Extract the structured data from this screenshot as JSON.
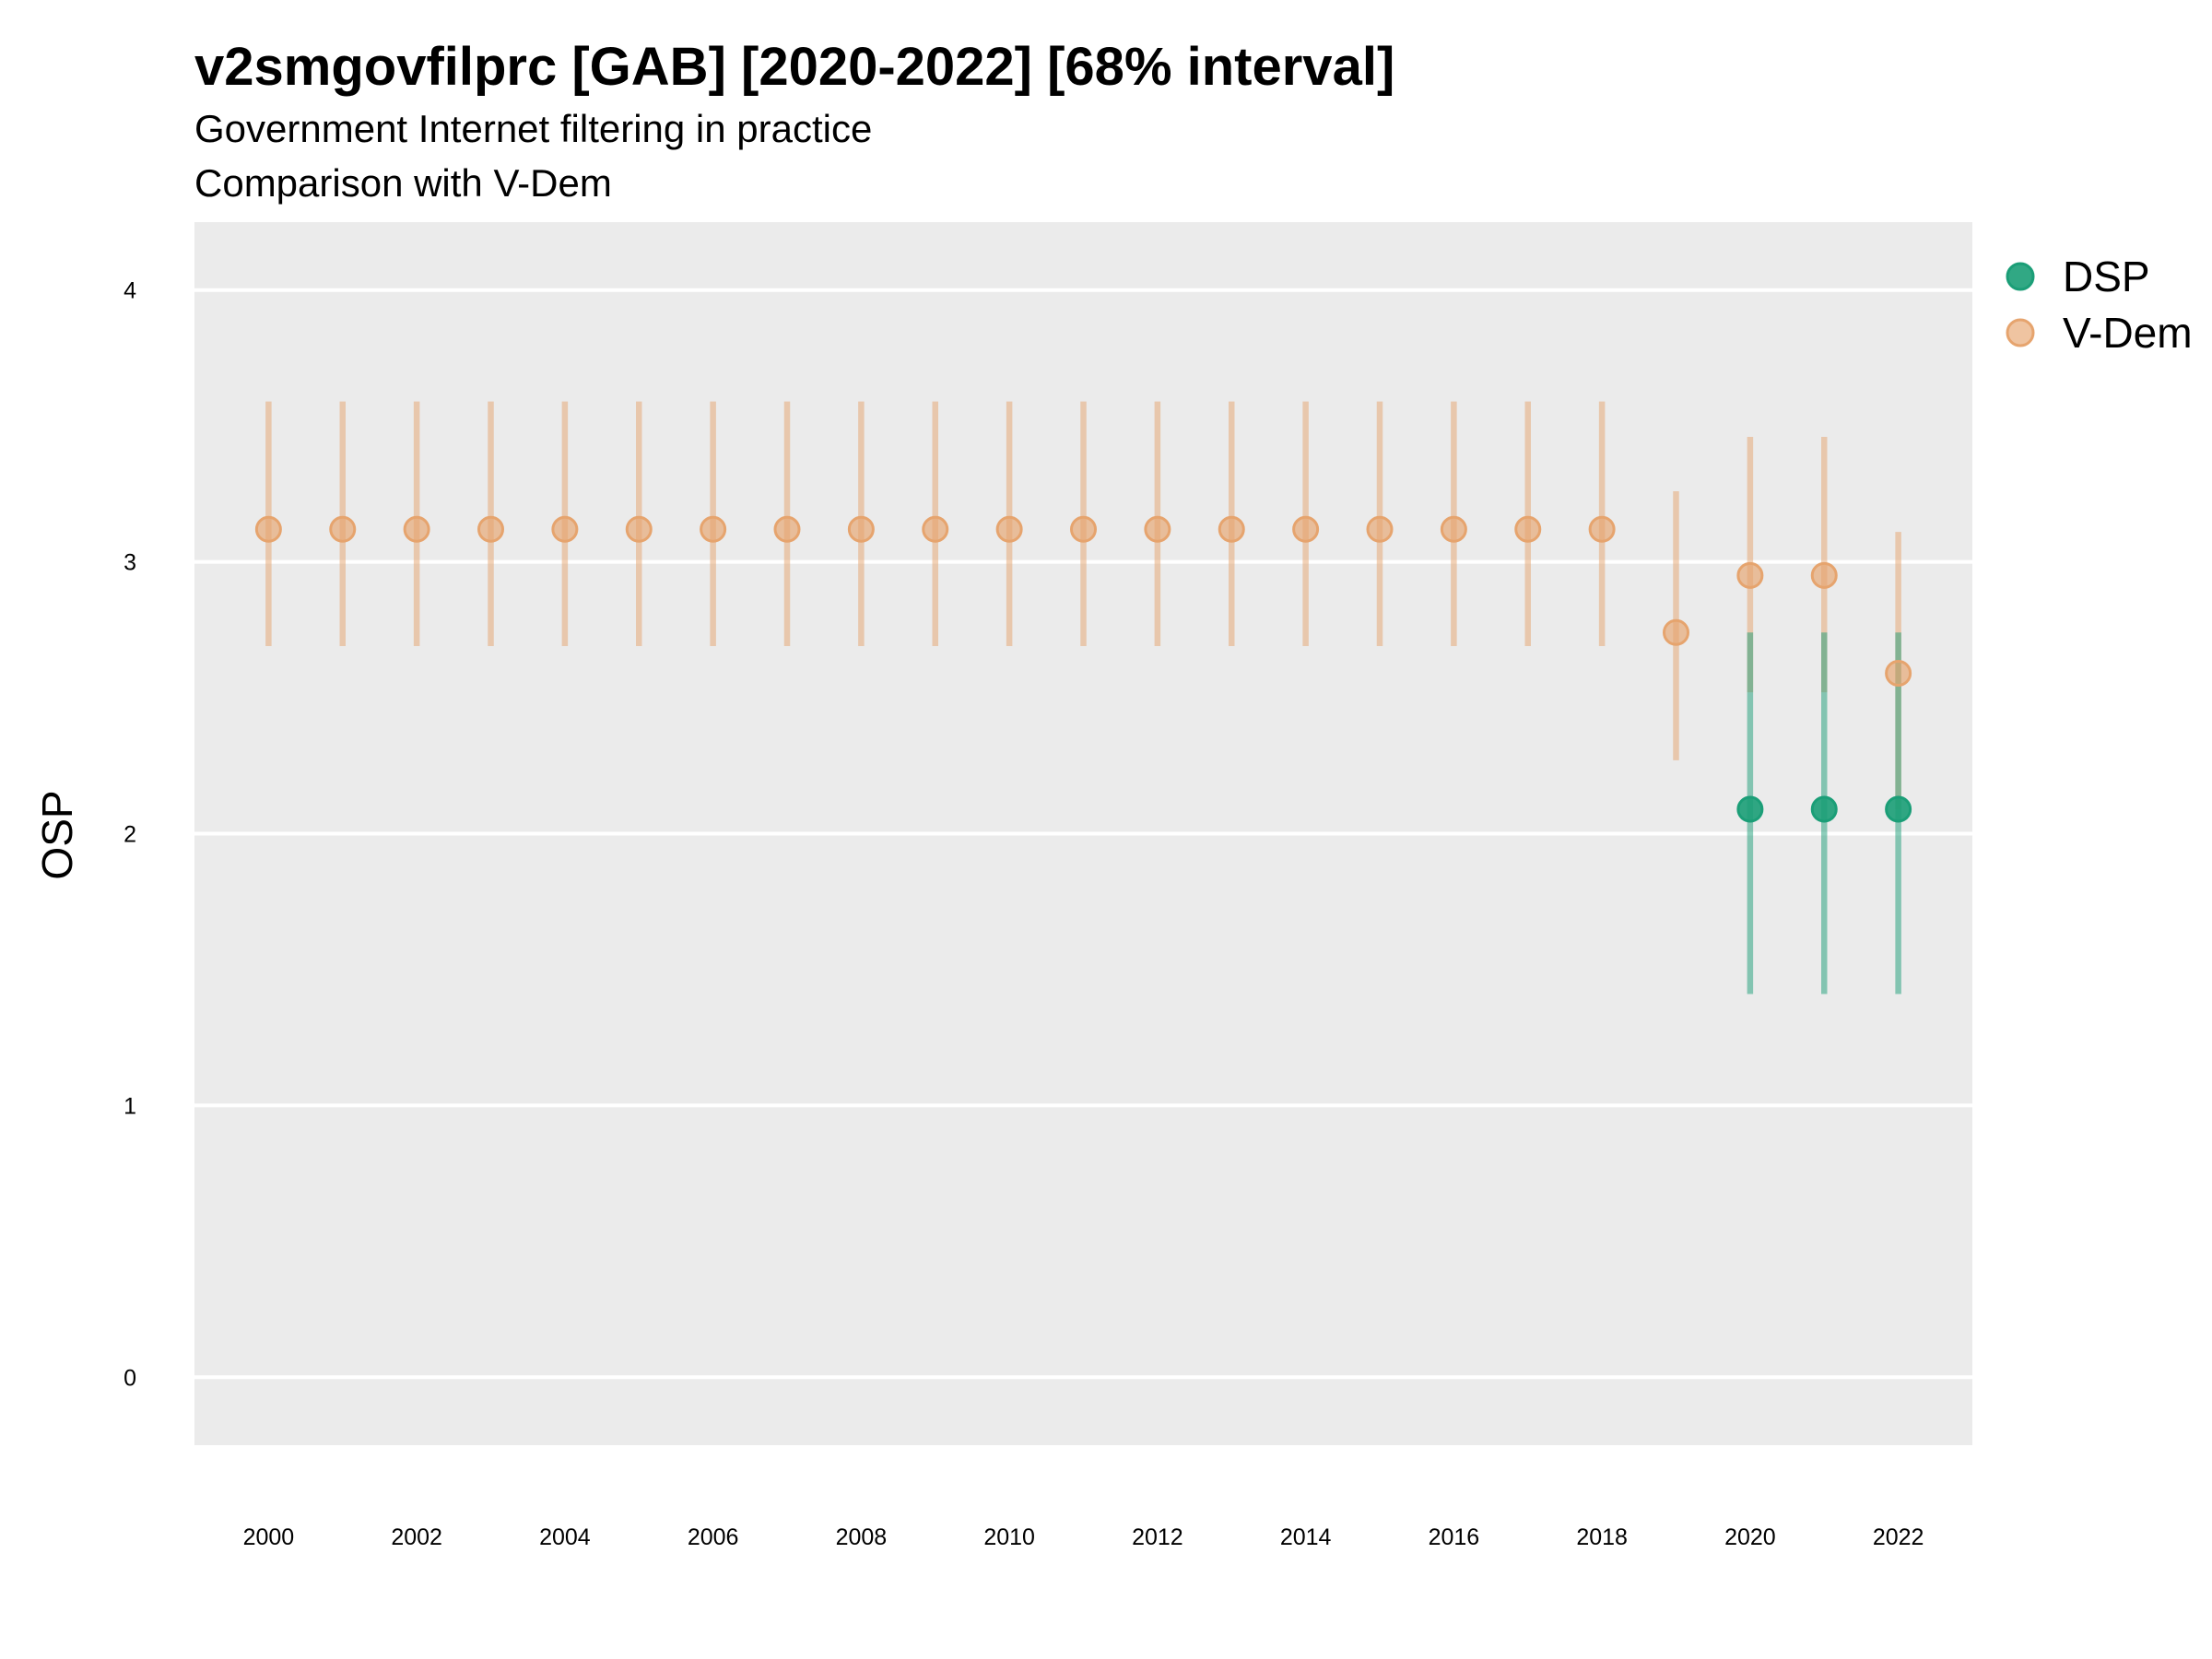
{
  "chart_data": {
    "type": "scatter",
    "title": "v2smgovfilprc [GAB] [2020-2022] [68% interval]",
    "subtitle": "Government Internet filtering in practice",
    "subtitle2": "Comparison with V-Dem",
    "xlabel": "",
    "ylabel": "OSP",
    "xlim": [
      1999,
      2023
    ],
    "ylim": [
      -0.25,
      4.25
    ],
    "x_ticks": [
      "2000",
      "2002",
      "2004",
      "2006",
      "2008",
      "2010",
      "2012",
      "2014",
      "2016",
      "2018",
      "2020",
      "2022"
    ],
    "y_ticks": [
      "0",
      "1",
      "2",
      "3",
      "4"
    ],
    "grid": true,
    "legend_position": "right",
    "series": [
      {
        "name": "DSP",
        "color": "#1b9e77",
        "points": [
          {
            "x": 2020,
            "y": 2.09,
            "low": 1.41,
            "high": 2.74
          },
          {
            "x": 2021,
            "y": 2.09,
            "low": 1.41,
            "high": 2.74
          },
          {
            "x": 2022,
            "y": 2.09,
            "low": 1.41,
            "high": 2.74
          }
        ]
      },
      {
        "name": "V-Dem",
        "color": "#e6a46e",
        "points": [
          {
            "x": 2000,
            "y": 3.12,
            "low": 2.69,
            "high": 3.59
          },
          {
            "x": 2001,
            "y": 3.12,
            "low": 2.69,
            "high": 3.59
          },
          {
            "x": 2002,
            "y": 3.12,
            "low": 2.69,
            "high": 3.59
          },
          {
            "x": 2003,
            "y": 3.12,
            "low": 2.69,
            "high": 3.59
          },
          {
            "x": 2004,
            "y": 3.12,
            "low": 2.69,
            "high": 3.59
          },
          {
            "x": 2005,
            "y": 3.12,
            "low": 2.69,
            "high": 3.59
          },
          {
            "x": 2006,
            "y": 3.12,
            "low": 2.69,
            "high": 3.59
          },
          {
            "x": 2007,
            "y": 3.12,
            "low": 2.69,
            "high": 3.59
          },
          {
            "x": 2008,
            "y": 3.12,
            "low": 2.69,
            "high": 3.59
          },
          {
            "x": 2009,
            "y": 3.12,
            "low": 2.69,
            "high": 3.59
          },
          {
            "x": 2010,
            "y": 3.12,
            "low": 2.69,
            "high": 3.59
          },
          {
            "x": 2011,
            "y": 3.12,
            "low": 2.69,
            "high": 3.59
          },
          {
            "x": 2012,
            "y": 3.12,
            "low": 2.69,
            "high": 3.59
          },
          {
            "x": 2013,
            "y": 3.12,
            "low": 2.69,
            "high": 3.59
          },
          {
            "x": 2014,
            "y": 3.12,
            "low": 2.69,
            "high": 3.59
          },
          {
            "x": 2015,
            "y": 3.12,
            "low": 2.69,
            "high": 3.59
          },
          {
            "x": 2016,
            "y": 3.12,
            "low": 2.69,
            "high": 3.59
          },
          {
            "x": 2017,
            "y": 3.12,
            "low": 2.69,
            "high": 3.59
          },
          {
            "x": 2018,
            "y": 3.12,
            "low": 2.69,
            "high": 3.59
          },
          {
            "x": 2019,
            "y": 2.74,
            "low": 2.27,
            "high": 3.26
          },
          {
            "x": 2020,
            "y": 2.95,
            "low": 2.52,
            "high": 3.46
          },
          {
            "x": 2021,
            "y": 2.95,
            "low": 2.52,
            "high": 3.46
          },
          {
            "x": 2022,
            "y": 2.59,
            "low": 2.09,
            "high": 3.11
          }
        ]
      }
    ]
  }
}
